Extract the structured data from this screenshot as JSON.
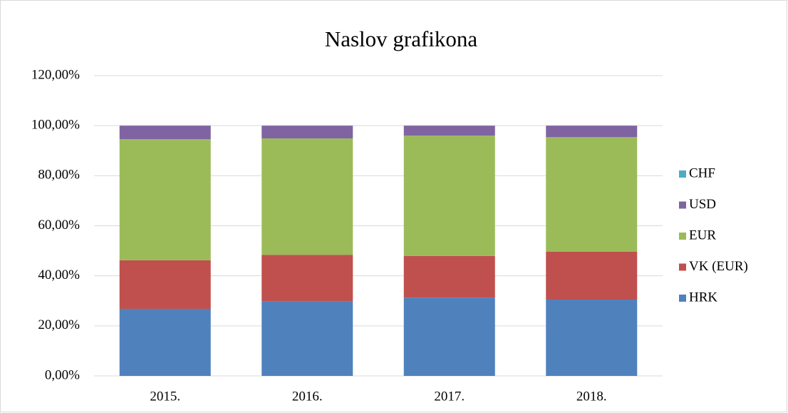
{
  "chart_data": {
    "type": "stacked_bar",
    "title": "Naslov grafikona",
    "categories": [
      "2015.",
      "2016.",
      "2017.",
      "2018."
    ],
    "series": [
      {
        "name": "HRK",
        "color": "#4f81bd",
        "values": [
          26.8,
          29.9,
          31.3,
          30.5
        ]
      },
      {
        "name": "VK (EUR)",
        "color": "#c0504d",
        "values": [
          19.4,
          18.5,
          16.6,
          19.1
        ]
      },
      {
        "name": "EUR",
        "color": "#9bbb59",
        "values": [
          48.4,
          46.5,
          48.1,
          45.8
        ]
      },
      {
        "name": "USD",
        "color": "#8064a2",
        "values": [
          5.4,
          5.1,
          4.0,
          4.6
        ]
      },
      {
        "name": "CHF",
        "color": "#4bacc6",
        "values": [
          0,
          0,
          0,
          0
        ]
      }
    ],
    "ylim": [
      0,
      120
    ],
    "yticks": [
      {
        "value": 0,
        "label": "0,00%"
      },
      {
        "value": 20,
        "label": "20,00%"
      },
      {
        "value": 40,
        "label": "40,00%"
      },
      {
        "value": 60,
        "label": "60,00%"
      },
      {
        "value": 80,
        "label": "80,00%"
      },
      {
        "value": 100,
        "label": "100,00%"
      },
      {
        "value": 120,
        "label": "120,00%"
      }
    ],
    "grid": true,
    "legend": "right"
  }
}
